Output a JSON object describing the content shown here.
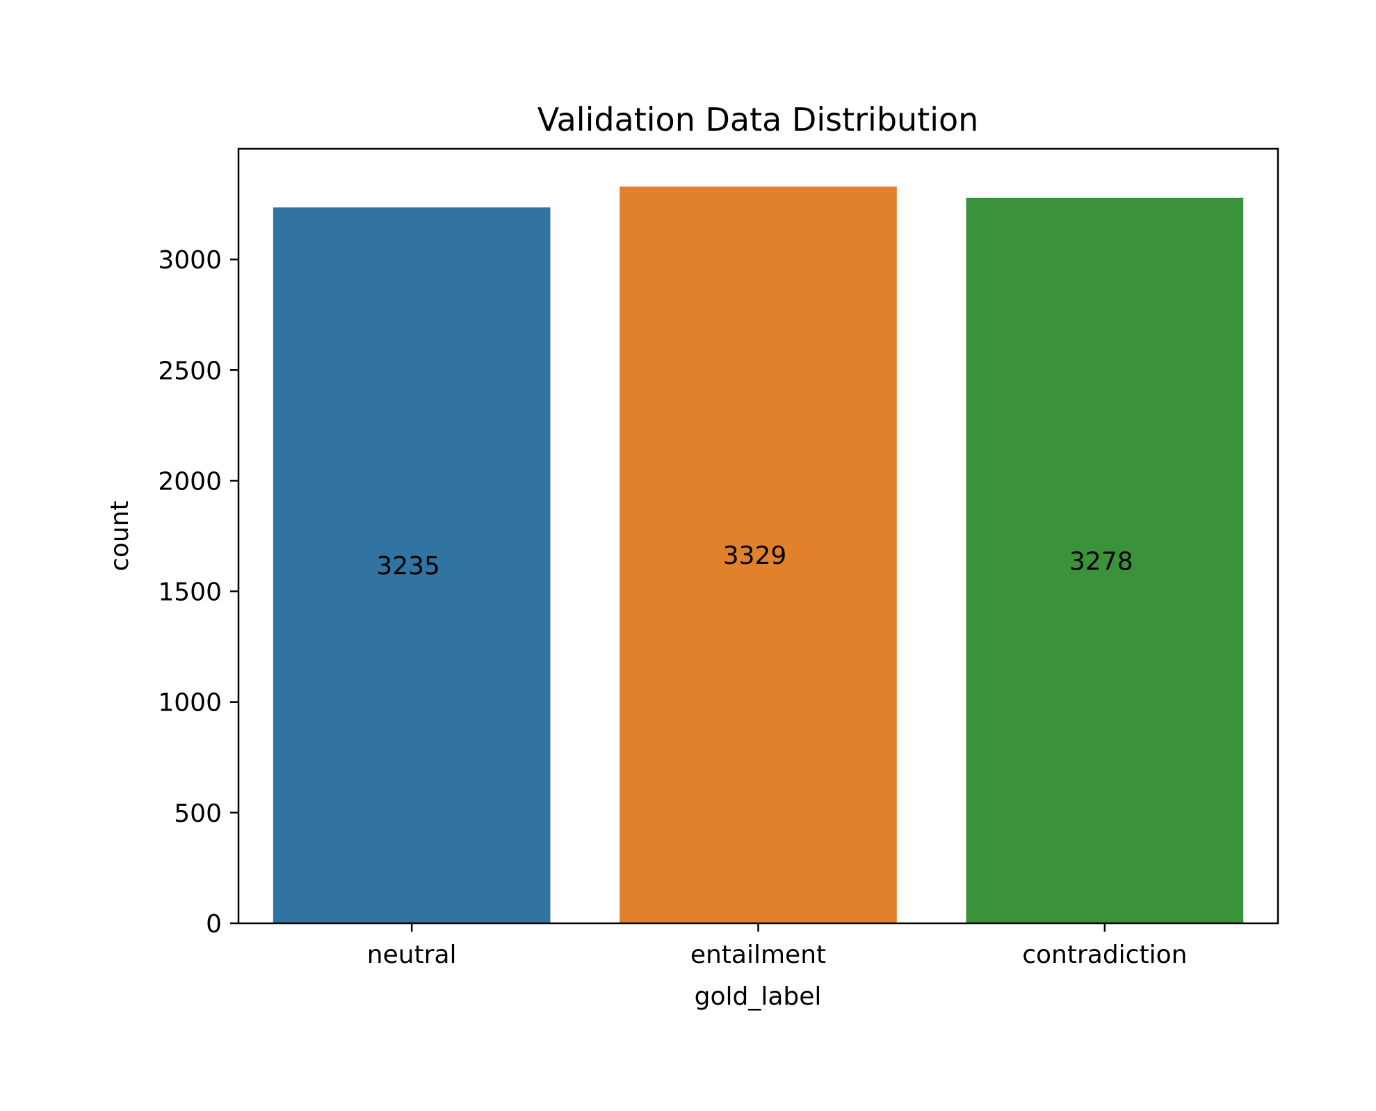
{
  "chart_data": {
    "type": "bar",
    "title": "Validation Data Distribution",
    "xlabel": "gold_label",
    "ylabel": "count",
    "categories": [
      "neutral",
      "entailment",
      "contradiction"
    ],
    "values": [
      3235,
      3329,
      3278
    ],
    "data_labels": [
      "3235",
      "3329",
      "3278"
    ],
    "colors": [
      "#3274a1",
      "#e1812c",
      "#3a923a"
    ],
    "ylim": [
      0,
      3500
    ],
    "yticks": [
      0,
      500,
      1000,
      1500,
      2000,
      2500,
      3000
    ],
    "ytick_labels": [
      "0",
      "500",
      "1000",
      "1500",
      "2000",
      "2500",
      "3000"
    ],
    "grid": false,
    "legend": "none"
  }
}
